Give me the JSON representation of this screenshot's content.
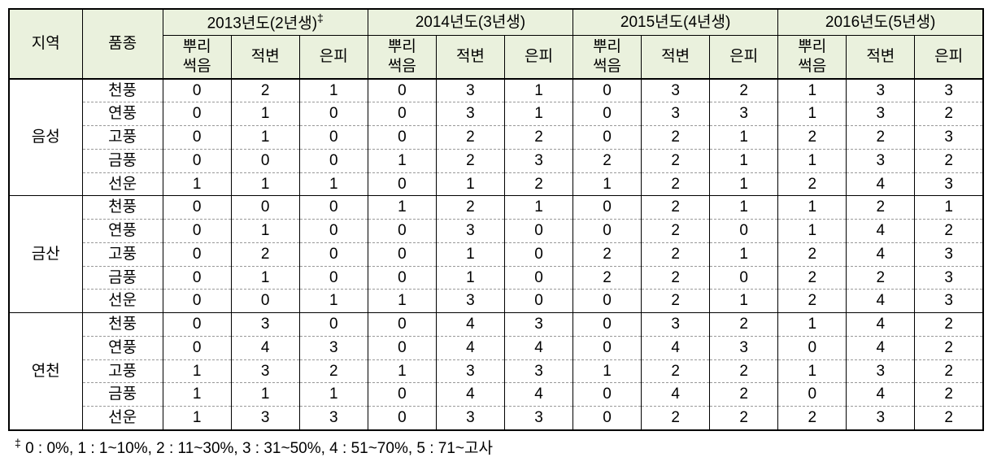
{
  "headers": {
    "region": "지역",
    "variety": "품종",
    "years": [
      {
        "label": "2013년도(2년생)",
        "dagger": true
      },
      {
        "label": "2014년도(3년생)",
        "dagger": false
      },
      {
        "label": "2015년도(4년생)",
        "dagger": false
      },
      {
        "label": "2016년도(5년생)",
        "dagger": false
      }
    ],
    "subcolumns": [
      "뿌리\n썩음",
      "적변",
      "은피"
    ],
    "sub_root_line1": "뿌리",
    "sub_root_line2": "썩음",
    "sub_col2": "적변",
    "sub_col3": "은피"
  },
  "regions": [
    {
      "name": "음성",
      "rows": [
        {
          "variety": "천풍",
          "vals": [
            0,
            2,
            1,
            0,
            3,
            1,
            0,
            3,
            2,
            1,
            3,
            3
          ]
        },
        {
          "variety": "연풍",
          "vals": [
            0,
            1,
            0,
            0,
            3,
            1,
            0,
            3,
            3,
            1,
            3,
            2
          ]
        },
        {
          "variety": "고풍",
          "vals": [
            0,
            1,
            0,
            0,
            2,
            2,
            0,
            2,
            1,
            2,
            2,
            3
          ]
        },
        {
          "variety": "금풍",
          "vals": [
            0,
            0,
            0,
            1,
            2,
            3,
            2,
            2,
            1,
            1,
            3,
            2
          ]
        },
        {
          "variety": "선운",
          "vals": [
            1,
            1,
            1,
            0,
            1,
            2,
            1,
            2,
            1,
            2,
            4,
            3
          ]
        }
      ]
    },
    {
      "name": "금산",
      "rows": [
        {
          "variety": "천풍",
          "vals": [
            0,
            0,
            0,
            1,
            2,
            1,
            0,
            2,
            1,
            1,
            2,
            1
          ]
        },
        {
          "variety": "연풍",
          "vals": [
            0,
            1,
            0,
            0,
            3,
            0,
            0,
            2,
            0,
            1,
            4,
            2
          ]
        },
        {
          "variety": "고풍",
          "vals": [
            0,
            2,
            0,
            0,
            1,
            0,
            2,
            2,
            1,
            2,
            4,
            3
          ]
        },
        {
          "variety": "금풍",
          "vals": [
            0,
            1,
            0,
            0,
            1,
            0,
            2,
            2,
            0,
            2,
            2,
            3
          ]
        },
        {
          "variety": "선운",
          "vals": [
            0,
            0,
            1,
            1,
            3,
            0,
            0,
            2,
            1,
            2,
            4,
            3
          ]
        }
      ]
    },
    {
      "name": "연천",
      "rows": [
        {
          "variety": "천풍",
          "vals": [
            0,
            3,
            0,
            0,
            4,
            3,
            0,
            3,
            2,
            1,
            4,
            2
          ]
        },
        {
          "variety": "연풍",
          "vals": [
            0,
            4,
            3,
            0,
            4,
            4,
            0,
            4,
            3,
            0,
            4,
            2
          ]
        },
        {
          "variety": "고풍",
          "vals": [
            1,
            3,
            2,
            1,
            3,
            3,
            1,
            2,
            2,
            1,
            3,
            2
          ]
        },
        {
          "variety": "금풍",
          "vals": [
            1,
            1,
            1,
            0,
            4,
            4,
            0,
            4,
            2,
            0,
            4,
            2
          ]
        },
        {
          "variety": "선운",
          "vals": [
            1,
            3,
            3,
            0,
            3,
            3,
            0,
            2,
            2,
            2,
            3,
            2
          ]
        }
      ]
    }
  ],
  "footnote": {
    "dagger": "‡",
    "text": "0 : 0%, 1 : 1~10%, 2 : 11~30%, 3 : 31~50%, 4 : 51~70%, 5 : 71~고사"
  },
  "colors": {
    "header_bg": "#eaf1dd",
    "border_solid": "#000000",
    "border_dashed": "#999999",
    "background": "#ffffff"
  },
  "typography": {
    "font_family": "Malgun Gothic",
    "font_size_pt": 14,
    "footnote_size_pt": 14
  }
}
